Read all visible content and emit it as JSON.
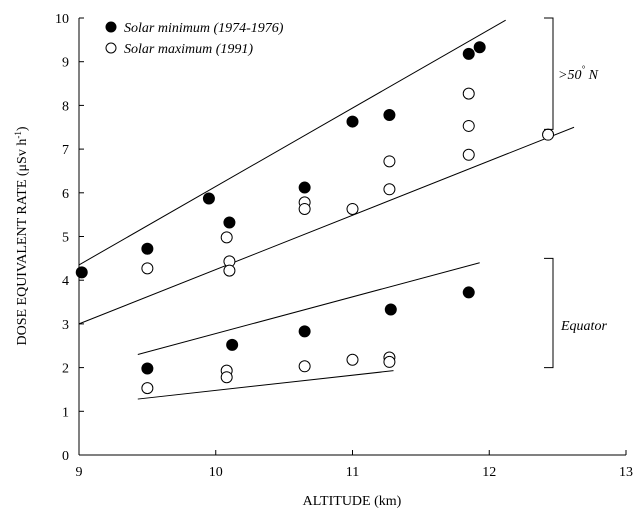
{
  "chart_data": {
    "type": "scatter",
    "xlabel": "ALTITUDE (km)",
    "ylabel": "DOSE EQUIVALENT RATE (μSv h-1)",
    "ylabel_main": "DOSE EQUIVALENT RATE (μSv h",
    "ylabel_sup": "-1",
    "ylabel_end": ")",
    "xlim": [
      9,
      13
    ],
    "ylim": [
      0,
      10
    ],
    "xticks": [
      "9",
      "10",
      "11",
      "12",
      "13"
    ],
    "yticks": [
      "0",
      "1",
      "2",
      "3",
      "4",
      "5",
      "6",
      "7",
      "8",
      "9",
      "10"
    ],
    "grid": false,
    "legend_position": "top-left",
    "series": [
      {
        "name": "Solar minimum (1974-1976)",
        "marker": "filled-circle",
        "points": [
          [
            9.02,
            4.18
          ],
          [
            9.5,
            4.72
          ],
          [
            9.95,
            5.87
          ],
          [
            10.1,
            5.32
          ],
          [
            10.65,
            6.12
          ],
          [
            11.0,
            7.63
          ],
          [
            11.27,
            7.78
          ],
          [
            11.85,
            9.18
          ],
          [
            11.93,
            9.33
          ],
          [
            9.5,
            1.98
          ],
          [
            10.12,
            2.52
          ],
          [
            10.65,
            2.83
          ],
          [
            11.28,
            3.33
          ],
          [
            11.85,
            3.72
          ]
        ]
      },
      {
        "name": "Solar maximum (1991)",
        "marker": "open-circle",
        "points": [
          [
            9.5,
            4.27
          ],
          [
            10.08,
            4.98
          ],
          [
            10.1,
            4.43
          ],
          [
            10.1,
            4.22
          ],
          [
            10.65,
            5.78
          ],
          [
            10.65,
            5.63
          ],
          [
            11.0,
            5.63
          ],
          [
            11.27,
            6.72
          ],
          [
            11.27,
            6.08
          ],
          [
            11.85,
            8.27
          ],
          [
            11.85,
            7.53
          ],
          [
            11.85,
            6.87
          ],
          [
            12.43,
            7.33
          ],
          [
            9.5,
            1.53
          ],
          [
            10.08,
            1.93
          ],
          [
            10.08,
            1.78
          ],
          [
            10.65,
            2.03
          ],
          [
            11.0,
            2.18
          ],
          [
            11.27,
            2.23
          ],
          [
            11.27,
            2.13
          ]
        ]
      }
    ],
    "envelope_lines": [
      {
        "x": [
          9.0,
          12.12
        ],
        "y": [
          4.35,
          9.95
        ]
      },
      {
        "x": [
          9.0,
          12.62
        ],
        "y": [
          3.0,
          7.5
        ]
      },
      {
        "x": [
          9.43,
          11.93
        ],
        "y": [
          2.3,
          4.4
        ]
      },
      {
        "x": [
          9.43,
          11.3
        ],
        "y": [
          1.28,
          1.93
        ]
      }
    ],
    "annotations": [
      {
        "text": ">50° N",
        "range": [
          7.45,
          10.0
        ],
        "display_text": ">50",
        "deg": "°",
        "suffix": " N"
      },
      {
        "text": "Equator",
        "range": [
          2.0,
          4.5
        ]
      }
    ]
  }
}
